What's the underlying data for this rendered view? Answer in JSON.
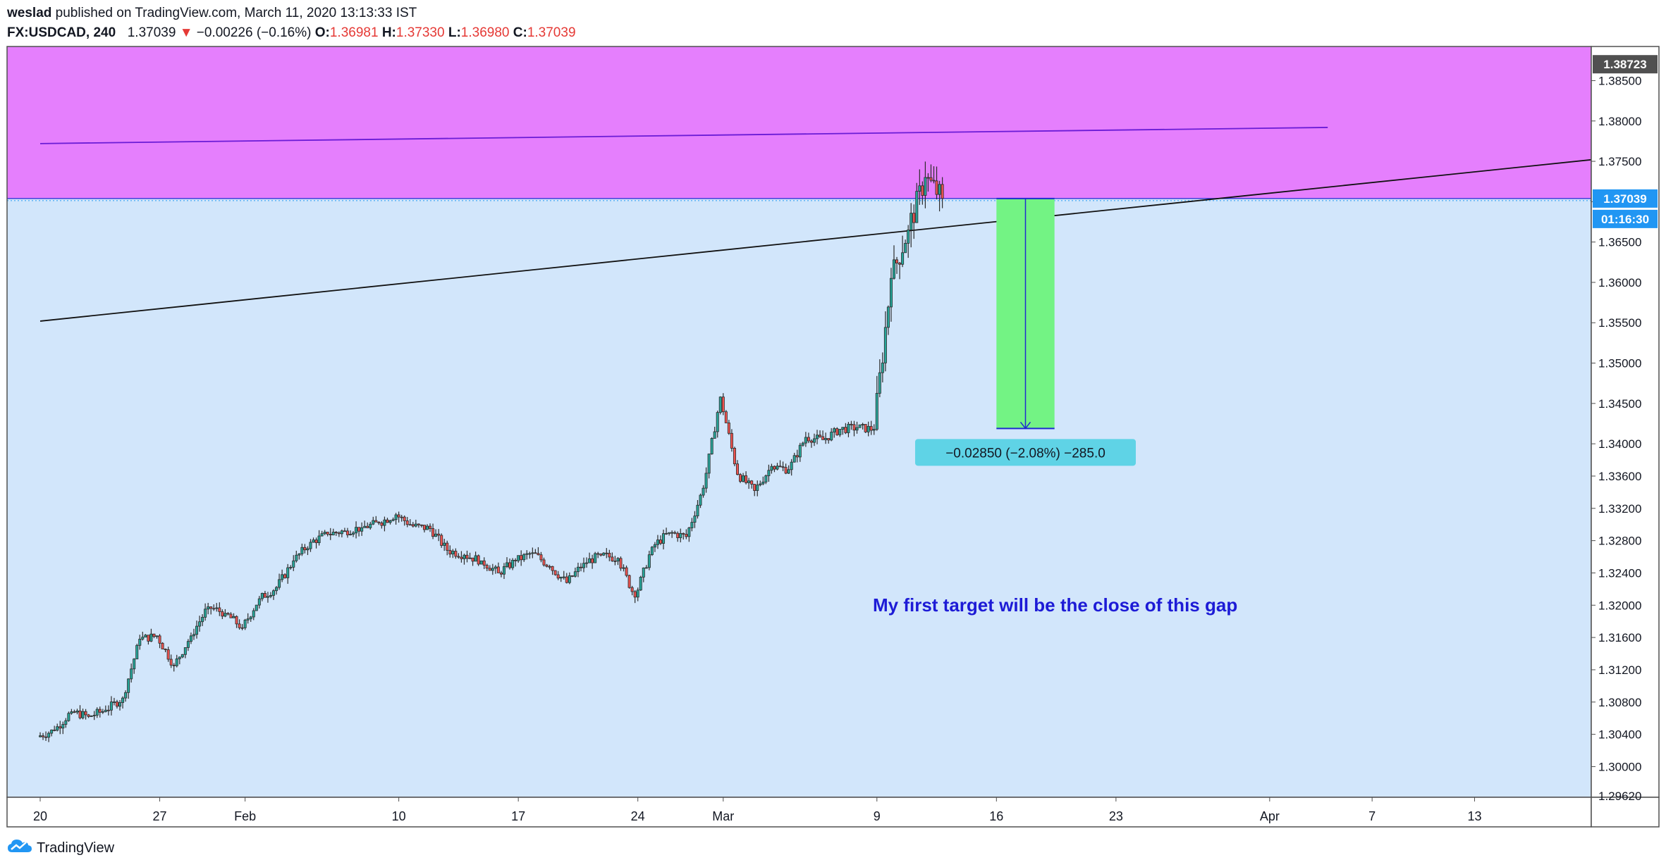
{
  "header": {
    "author": "weslad",
    "published_text": "published on TradingView.com, March 11, 2020 13:13:33 IST",
    "symbol": "FX:USDCAD, 240",
    "last": "1.37039",
    "change_arrow": "▼",
    "change": "−0.00226 (−0.16%)",
    "o_label": "O:",
    "o": "1.36981",
    "h_label": "H:",
    "h": "1.37330",
    "l_label": "L:",
    "l": "1.36980",
    "c_label": "C:",
    "c": "1.37039"
  },
  "footer": {
    "brand": "TradingView",
    "logo_icon": "tradingview-cloud-icon"
  },
  "colors": {
    "background": "#d2e6fb",
    "resistance_zone": "#e57ffd",
    "target_box": "#73f384",
    "label_box": "#5fd3e6",
    "annotation": "#1d1bd6",
    "candle_up": "#26a69a",
    "candle_down": "#ef5350",
    "price_tag": "#2196f3"
  },
  "chart_data": {
    "type": "candlestick",
    "symbol": "FX:USDCAD",
    "interval": "240",
    "ylim": [
      1.2962,
      1.38923
    ],
    "y_ticks": [
      1.3,
      1.304,
      1.308,
      1.312,
      1.316,
      1.32,
      1.324,
      1.328,
      1.332,
      1.336,
      1.34,
      1.345,
      1.35,
      1.355,
      1.36,
      1.365,
      1.37,
      1.375,
      1.38,
      1.385
    ],
    "y_tick_labels": [
      "1.30000",
      "1.30400",
      "1.30800",
      "1.31200",
      "1.31600",
      "1.32000",
      "1.32400",
      "1.32800",
      "1.33200",
      "1.33600",
      "1.34000",
      "1.34500",
      "1.35000",
      "1.35500",
      "1.36000",
      "1.36500",
      "1.37000",
      "1.37500",
      "1.38000",
      "1.38500"
    ],
    "y_partial_label": "1.29620",
    "x_ticks": [
      "20",
      "27",
      "Feb",
      "10",
      "17",
      "24",
      "Mar",
      "9",
      "16",
      "23",
      "Apr",
      "7",
      "13"
    ],
    "x_tick_days": [
      0,
      7,
      12,
      21,
      28,
      35,
      40,
      49,
      56,
      63,
      72,
      78,
      84
    ],
    "last_price_label": "1.37039",
    "countdown_label": "01:16:30",
    "top_price_label": "1.38723",
    "daily_closes": [
      {
        "day": 0,
        "close": 1.3045
      },
      {
        "day": 1,
        "close": 1.3068
      },
      {
        "day": 2,
        "close": 1.3062
      },
      {
        "day": 3,
        "close": 1.307
      },
      {
        "day": 4,
        "close": 1.3085
      },
      {
        "day": 5,
        "close": 1.3158
      },
      {
        "day": 6,
        "close": 1.3162
      },
      {
        "day": 7,
        "close": 1.3125
      },
      {
        "day": 8,
        "close": 1.3162
      },
      {
        "day": 9,
        "close": 1.3198
      },
      {
        "day": 10,
        "close": 1.319
      },
      {
        "day": 11,
        "close": 1.3172
      },
      {
        "day": 12,
        "close": 1.3208
      },
      {
        "day": 13,
        "close": 1.3222
      },
      {
        "day": 14,
        "close": 1.3255
      },
      {
        "day": 15,
        "close": 1.3278
      },
      {
        "day": 16,
        "close": 1.3288
      },
      {
        "day": 17,
        "close": 1.3292
      },
      {
        "day": 18,
        "close": 1.3296
      },
      {
        "day": 19,
        "close": 1.3302
      },
      {
        "day": 20,
        "close": 1.3312
      },
      {
        "day": 21,
        "close": 1.3298
      },
      {
        "day": 22,
        "close": 1.3295
      },
      {
        "day": 23,
        "close": 1.3268
      },
      {
        "day": 24,
        "close": 1.3262
      },
      {
        "day": 25,
        "close": 1.3255
      },
      {
        "day": 26,
        "close": 1.324
      },
      {
        "day": 27,
        "close": 1.3255
      },
      {
        "day": 28,
        "close": 1.3265
      },
      {
        "day": 29,
        "close": 1.3248
      },
      {
        "day": 30,
        "close": 1.3228
      },
      {
        "day": 31,
        "close": 1.3252
      },
      {
        "day": 32,
        "close": 1.3262
      },
      {
        "day": 33,
        "close": 1.3258
      },
      {
        "day": 34,
        "close": 1.321
      },
      {
        "day": 35,
        "close": 1.3272
      },
      {
        "day": 36,
        "close": 1.329
      },
      {
        "day": 37,
        "close": 1.3285
      },
      {
        "day": 38,
        "close": 1.3345
      },
      {
        "day": 39,
        "close": 1.3458
      },
      {
        "day": 40,
        "close": 1.3362
      },
      {
        "day": 41,
        "close": 1.3342
      },
      {
        "day": 42,
        "close": 1.3372
      },
      {
        "day": 43,
        "close": 1.3368
      },
      {
        "day": 44,
        "close": 1.3408
      },
      {
        "day": 45,
        "close": 1.3405
      },
      {
        "day": 46,
        "close": 1.3418
      },
      {
        "day": 47,
        "close": 1.342
      },
      {
        "day": 48,
        "close": 1.3418
      },
      {
        "day": 49,
        "close": 1.3605
      },
      {
        "day": 50,
        "close": 1.3665
      },
      {
        "day": 51,
        "close": 1.373
      },
      {
        "day": 52,
        "close": 1.3704
      }
    ],
    "drawings": {
      "resistance_zone": {
        "from": 1.37039,
        "to": 1.38923
      },
      "upper_trendline": {
        "day_start": 0,
        "price_start": 1.3772,
        "day_end": 75.4,
        "price_end": 1.3792
      },
      "lower_trendline": {
        "day_start": 0,
        "price_start": 1.3552,
        "day_end": 75.4,
        "price_end": 1.3718
      },
      "horizontal_line": 1.37039,
      "target_box": {
        "day_start": 56,
        "day_end": 59.4,
        "price_top": 1.37039,
        "price_bottom": 1.3419
      },
      "measure_label": "−0.02850 (−2.08%) −285.0",
      "annotation_text": "My first target will be the close of this gap"
    }
  }
}
